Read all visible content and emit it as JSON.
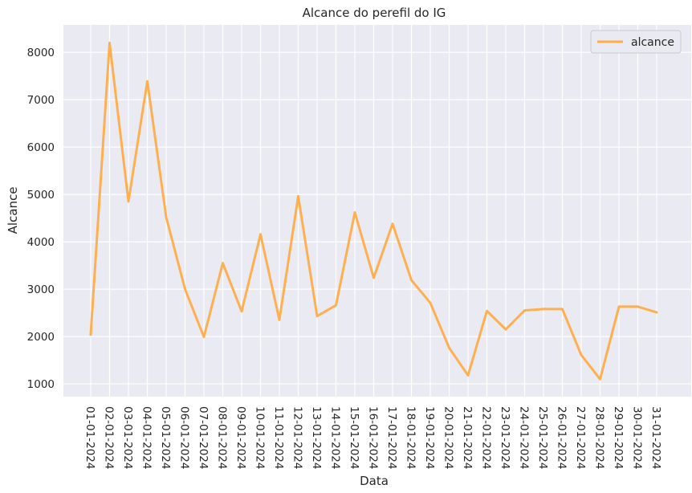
{
  "chart_data": {
    "type": "line",
    "title": "Alcance do perefil do IG",
    "xlabel": "Data",
    "ylabel": "Alcance",
    "ylim": [
      730,
      8580
    ],
    "yticks": [
      1000,
      2000,
      3000,
      4000,
      5000,
      6000,
      7000,
      8000
    ],
    "grid": true,
    "legend": "top-right",
    "categories": [
      "01-01-2024",
      "02-01-2024",
      "03-01-2024",
      "04-01-2024",
      "05-01-2024",
      "06-01-2024",
      "07-01-2024",
      "08-01-2024",
      "09-01-2024",
      "10-01-2024",
      "11-01-2024",
      "12-01-2024",
      "13-01-2024",
      "14-01-2024",
      "15-01-2024",
      "16-01-2024",
      "17-01-2024",
      "18-01-2024",
      "19-01-2024",
      "20-01-2024",
      "21-01-2024",
      "22-01-2024",
      "23-01-2024",
      "24-01-2024",
      "25-01-2024",
      "26-01-2024",
      "27-01-2024",
      "28-01-2024",
      "29-01-2024",
      "30-01-2024",
      "31-01-2024"
    ],
    "series": [
      {
        "name": "alcance",
        "color": "#ffad48",
        "values": [
          2040,
          8200,
          4850,
          7390,
          4520,
          3000,
          1990,
          3550,
          2530,
          4160,
          2350,
          4960,
          2430,
          2660,
          4620,
          3240,
          4380,
          3190,
          2710,
          1760,
          1180,
          2540,
          2150,
          2550,
          2580,
          2580,
          1610,
          1100,
          2630,
          2630,
          2510
        ]
      }
    ]
  }
}
